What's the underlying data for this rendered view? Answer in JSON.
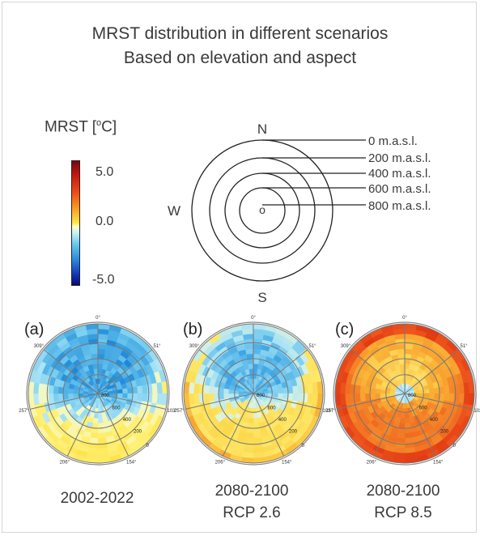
{
  "title_line1": "MRST distribution in different scenarios",
  "title_line2": "Based on elevation and aspect",
  "colorbar": {
    "label_text": "MRST [",
    "label_sup": "o",
    "label_unit": "C]",
    "max_label": "5.0",
    "mid_label": "0.0",
    "min_label": "-5.0",
    "max_value": 5.0,
    "min_value": -5.0,
    "colors": [
      "#7a0410",
      "#fde64a",
      "#5fc6ec",
      "#0a0a72"
    ]
  },
  "legend_diagram": {
    "directions": {
      "north": "N",
      "south": "S",
      "west": "W"
    },
    "center_mark": "o",
    "elevations": [
      "0 m.a.s.l.",
      "200 m.a.s.l.",
      "400 m.a.s.l.",
      "600 m.a.s.l.",
      "800 m.a.s.l."
    ]
  },
  "panels": [
    {
      "label": "(a)",
      "caption_line1": "2002-2022",
      "caption_line2": "",
      "scenario": "historical"
    },
    {
      "label": "(b)",
      "caption_line1": "2080-2100",
      "caption_line2": "RCP 2.6",
      "scenario": "rcp26"
    },
    {
      "label": "(c)",
      "caption_line1": "2080-2100",
      "caption_line2": "RCP 8.5",
      "scenario": "rcp85"
    }
  ],
  "polar_axis": {
    "angle_labels": [
      "0°",
      "51°",
      "103°",
      "154°",
      "206°",
      "257°",
      "309°"
    ],
    "radial_labels": [
      "800",
      "600",
      "400",
      "200",
      "0"
    ]
  }
}
